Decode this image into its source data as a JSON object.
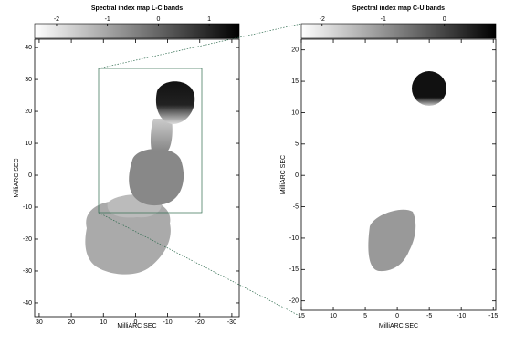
{
  "chart_data": [
    {
      "type": "image",
      "title": "Spectral index map L-C bands",
      "xlabel": "MilliARC SEC",
      "ylabel": "MilliARC SEC",
      "xlim": [
        31.4,
        -32.3
      ],
      "ylim": [
        -44.3,
        42.6
      ],
      "xticks": [
        30,
        20,
        10,
        0,
        -10,
        -20,
        -30
      ],
      "yticks": [
        -40,
        -30,
        -20,
        -10,
        0,
        10,
        20,
        30,
        40
      ],
      "colorbar": {
        "lim": [
          -2.43,
          1.59
        ],
        "ticks": [
          -2,
          -1,
          0,
          1
        ]
      }
    },
    {
      "type": "image",
      "title": "Spectral index map C-U bands",
      "xlabel": "MilliARC SEC",
      "ylabel": "MilliARC SEC",
      "xlim": [
        15,
        -15.4
      ],
      "ylim": [
        -21.5,
        21.7
      ],
      "xticks": [
        15,
        10,
        5,
        0,
        -5,
        -10,
        -15
      ],
      "yticks": [
        -20,
        -15,
        -10,
        -5,
        0,
        5,
        10,
        15,
        20
      ],
      "colorbar": {
        "lim": [
          -2.34,
          0.84
        ],
        "ticks": [
          -2,
          -1,
          0
        ]
      }
    }
  ]
}
